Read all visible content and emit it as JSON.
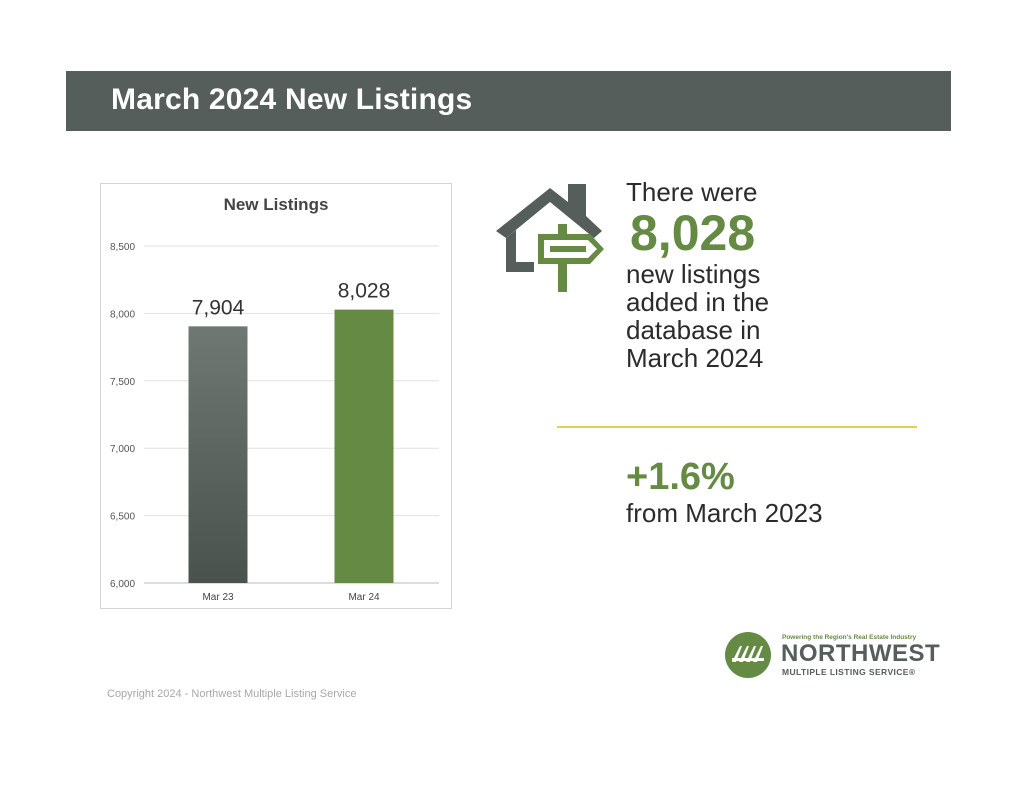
{
  "banner": {
    "title": "March 2024 New Listings"
  },
  "chart_data": {
    "type": "bar",
    "title": "New Listings",
    "categories": [
      "Mar 23",
      "Mar 24"
    ],
    "values": [
      7904,
      8028
    ],
    "value_labels": [
      "7,904",
      "8,028"
    ],
    "ylim": [
      6000,
      8500
    ],
    "yticks": [
      6000,
      6500,
      7000,
      7500,
      8000,
      8500
    ],
    "ytick_labels": [
      "6,000",
      "6,500",
      "7,000",
      "7,500",
      "8,000",
      "8,500"
    ],
    "xlabel": "",
    "ylabel": "",
    "grid": true,
    "colors": [
      "#555e5a",
      "#658a44"
    ]
  },
  "stat": {
    "line1": "There were",
    "big": "8,028",
    "line2": "new listings",
    "line3": "added in the",
    "line4": "database in",
    "line5": "March 2024"
  },
  "change": {
    "value": "+1.6%",
    "sub": "from March 2023"
  },
  "logo": {
    "tagline": "Powering the Region's Real Estate Industry",
    "name": "NORTHWEST",
    "subname": "MULTIPLE LISTING SERVICE",
    "reg": "®"
  },
  "footer": {
    "copyright": "Copyright 2024 - Northwest Multiple Listing Service"
  },
  "colors": {
    "banner": "#555e5a",
    "accent": "#658a44",
    "divider": "#e6cf4a"
  },
  "icons": {
    "house": "house-signpost-icon",
    "logo": "nwmls-logo-icon"
  }
}
